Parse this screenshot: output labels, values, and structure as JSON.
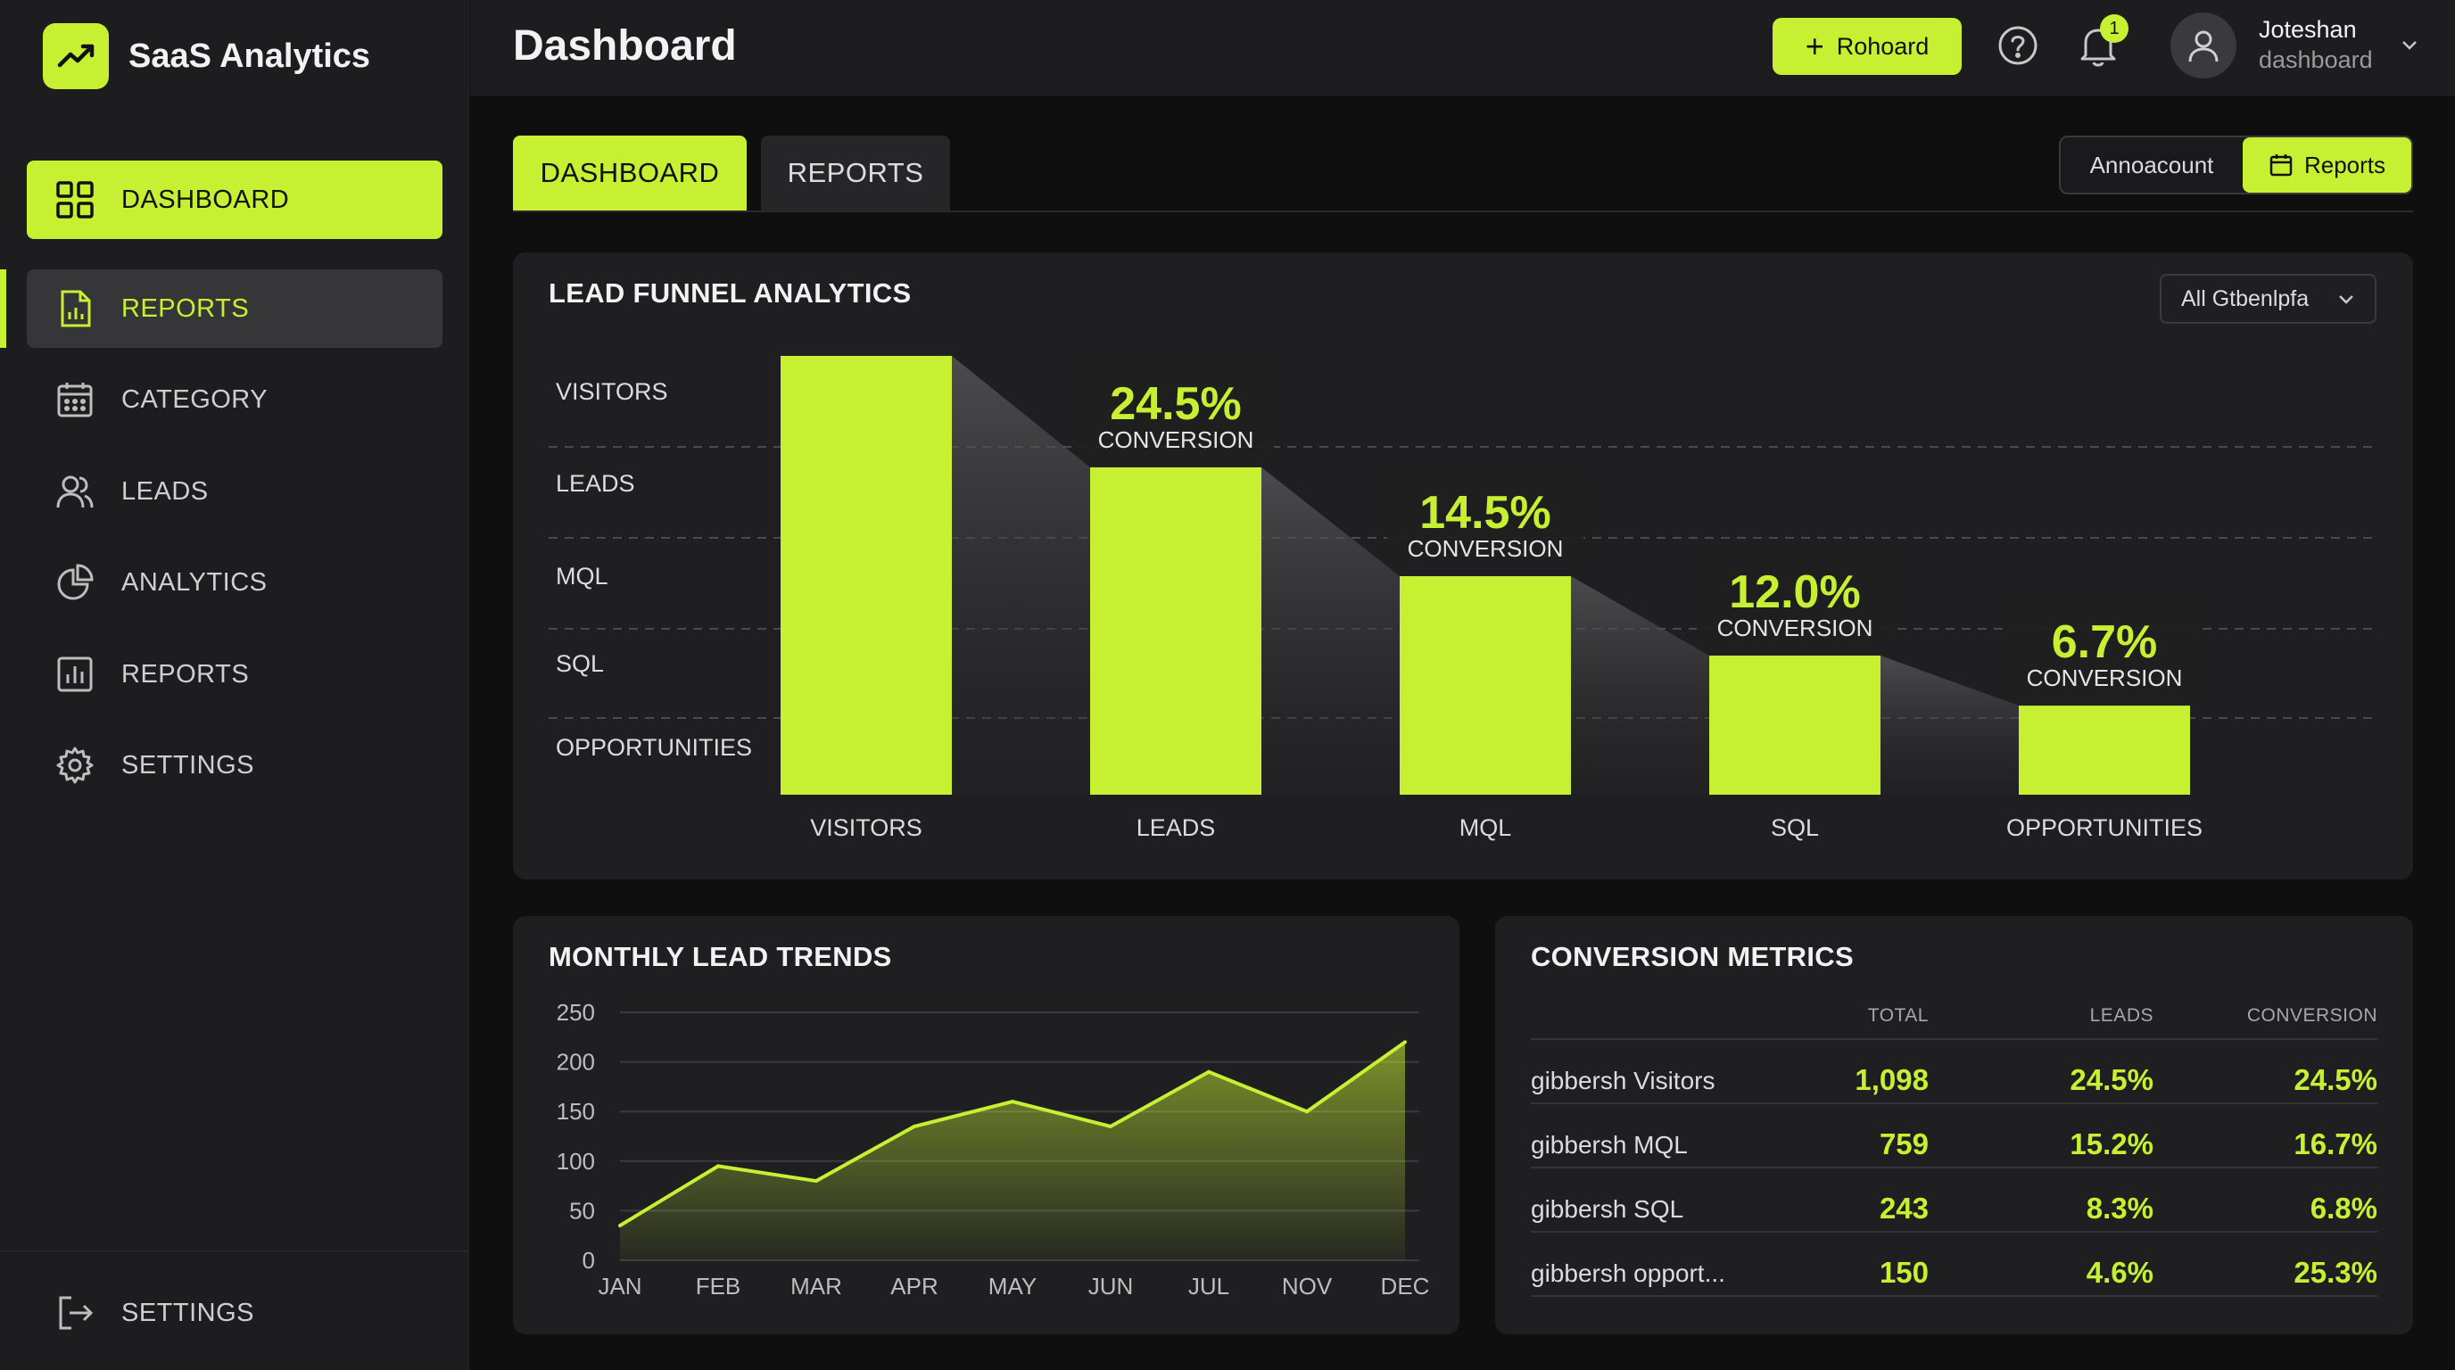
{
  "app": {
    "name": "SaaS Analytics",
    "logo_icon": "trend-up-icon"
  },
  "colors": {
    "accent": "#c8f032",
    "background": "#0f0f10",
    "panel": "#1f1f21",
    "sidebar": "#1d1d1f"
  },
  "sidebar": {
    "items": [
      {
        "label": "DASHBOARD",
        "icon": "grid-icon",
        "state": "active"
      },
      {
        "label": "REPORTS",
        "icon": "report-file-icon",
        "state": "selected"
      },
      {
        "label": "CATEGORY",
        "icon": "calendar-icon",
        "state": "normal"
      },
      {
        "label": "LEADS",
        "icon": "users-icon",
        "state": "normal"
      },
      {
        "label": "ANALYTICS",
        "icon": "pie-chart-icon",
        "state": "normal"
      },
      {
        "label": "REPORTS",
        "icon": "bar-chart-icon",
        "state": "normal"
      },
      {
        "label": "SETTINGS",
        "icon": "gear-icon",
        "state": "normal"
      }
    ],
    "footer": {
      "label": "SETTINGS",
      "icon": "logout-icon"
    }
  },
  "header": {
    "title": "Dashboard",
    "action_button": "Rohoard",
    "notifications_count": "1",
    "user": {
      "name": "Joteshan",
      "role": "dashboard"
    }
  },
  "tabs": [
    {
      "label": "DASHBOARD",
      "active": true
    },
    {
      "label": "REPORTS",
      "active": false
    }
  ],
  "toggle": {
    "left": "Annoacount",
    "right": "Reports"
  },
  "funnel": {
    "title": "LEAD FUNNEL ANALYTICS",
    "filter": "All Gtbenlpfa",
    "row_labels": [
      "VISITORS",
      "LEADS",
      "MQL",
      "SQL",
      "OPPORTUNITIES"
    ],
    "conversion_label": "CONVERSION"
  },
  "trend": {
    "title": "MONTHLY LEAD TRENDS"
  },
  "metrics": {
    "title": "CONVERSION METRICS",
    "columns": [
      "TOTAL",
      "LEADS",
      "CONVERSION"
    ],
    "rows": [
      {
        "name": "gibbersh Visitors",
        "total": "1,098",
        "leads": "24.5%",
        "conversion": "24.5%"
      },
      {
        "name": "gibbersh MQL",
        "total": "759",
        "leads": "15.2%",
        "conversion": "16.7%"
      },
      {
        "name": "gibbersh SQL",
        "total": "243",
        "leads": "8.3%",
        "conversion": "6.8%"
      },
      {
        "name": "gibbersh opport...",
        "total": "150",
        "leads": "4.6%",
        "conversion": "25.3%"
      }
    ]
  },
  "chart_data": [
    {
      "type": "bar",
      "title": "LEAD FUNNEL ANALYTICS",
      "categories": [
        "VISITORS",
        "LEADS",
        "MQL",
        "SQL",
        "OPPORTUNITIES"
      ],
      "values": [
        100,
        74.6,
        49.8,
        31.7,
        20.3
      ],
      "conversion_labels": [
        "",
        "24.5%",
        "14.5%",
        "12.0%",
        "6.7%"
      ],
      "grid": true
    },
    {
      "type": "area",
      "title": "MONTHLY LEAD TRENDS",
      "x": [
        "JAN",
        "FEB",
        "MAR",
        "APR",
        "MAY",
        "JUN",
        "JUL",
        "NOV",
        "DEC"
      ],
      "values": [
        35,
        95,
        80,
        135,
        160,
        135,
        190,
        150,
        220
      ],
      "yticks": [
        0,
        50,
        100,
        150,
        200,
        250
      ],
      "ylim": [
        0,
        250
      ],
      "grid": true
    }
  ]
}
